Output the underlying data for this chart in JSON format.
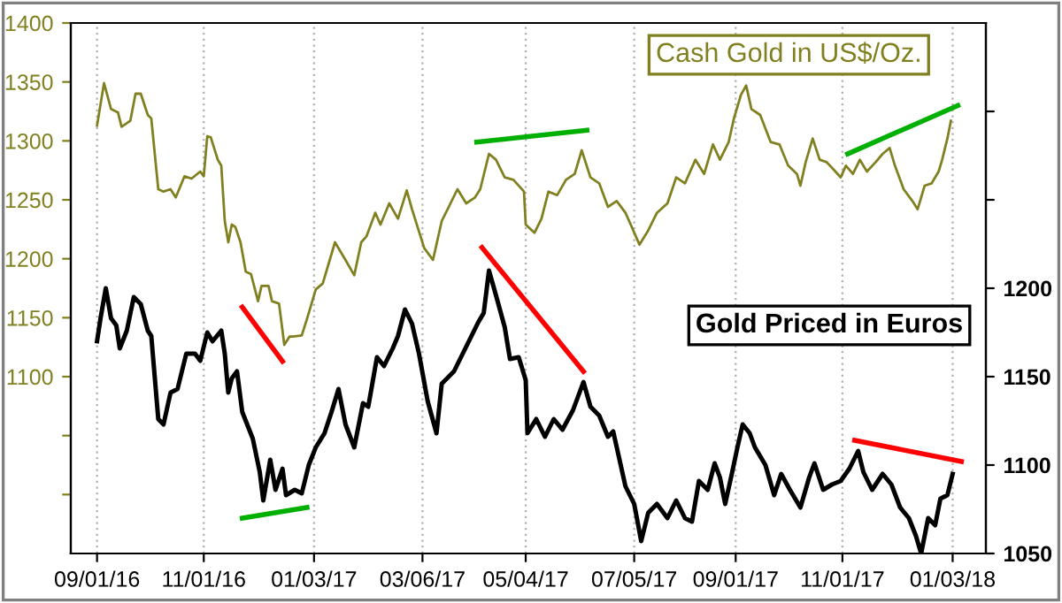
{
  "chart_data": {
    "type": "line",
    "legend": false,
    "grid": "x",
    "xlim": [
      "2016-08-17",
      "2018-01-22"
    ],
    "xticks": [
      {
        "value": "2016-09-01",
        "label": "09/01/16"
      },
      {
        "value": "2016-11-01",
        "label": "11/01/16"
      },
      {
        "value": "2017-01-03",
        "label": "01/03/17"
      },
      {
        "value": "2017-03-06",
        "label": "03/06/17"
      },
      {
        "value": "2017-05-04",
        "label": "05/04/17"
      },
      {
        "value": "2017-07-05",
        "label": "07/05/17"
      },
      {
        "value": "2017-09-01",
        "label": "09/01/17"
      },
      {
        "value": "2017-11-01",
        "label": "11/01/17"
      },
      {
        "value": "2018-01-03",
        "label": "01/03/18"
      }
    ],
    "ylim": [
      950,
      1400
    ],
    "yticks": [
      {
        "value": 1000,
        "label": null
      },
      {
        "value": 1050,
        "label": null
      },
      1100,
      1150,
      1200,
      1250,
      1300,
      1350,
      1400
    ],
    "y2lim": [
      1050,
      1350
    ],
    "y2ticks": [
      1050,
      1100,
      1150,
      1200,
      {
        "value": 1250,
        "label": null
      },
      {
        "value": 1300,
        "label": null
      }
    ],
    "series": [
      {
        "name": "Cash Gold in US$/Oz.",
        "color": "#808020",
        "axis": "y",
        "x": [
          "2016-09-01",
          "2016-09-05",
          "2016-09-09",
          "2016-09-13",
          "2016-09-15",
          "2016-09-20",
          "2016-09-23",
          "2016-09-26",
          "2016-09-30",
          "2016-10-02",
          "2016-10-06",
          "2016-10-09",
          "2016-10-13",
          "2016-10-16",
          "2016-10-21",
          "2016-10-25",
          "2016-10-30",
          "2016-11-01",
          "2016-11-03",
          "2016-11-05",
          "2016-11-09",
          "2016-11-11",
          "2016-11-13",
          "2016-11-15",
          "2016-11-17",
          "2016-11-19",
          "2016-11-22",
          "2016-11-25",
          "2016-11-28",
          "2016-12-02",
          "2016-12-04",
          "2016-12-08",
          "2016-12-10",
          "2016-12-14",
          "2016-12-16",
          "2016-12-17",
          "2016-12-20",
          "2016-12-22",
          "2016-12-27",
          "2016-12-30",
          "2017-01-01",
          "2017-01-04",
          "2017-01-08",
          "2017-01-12",
          "2017-01-15",
          "2017-01-17",
          "2017-01-21",
          "2017-01-26",
          "2017-01-30",
          "2017-02-02",
          "2017-02-07",
          "2017-02-10",
          "2017-02-15",
          "2017-02-20",
          "2017-02-25",
          "2017-02-28",
          "2017-03-07",
          "2017-03-12",
          "2017-03-17",
          "2017-03-22",
          "2017-03-26",
          "2017-03-31",
          "2017-04-05",
          "2017-04-08",
          "2017-04-13",
          "2017-04-17",
          "2017-04-22",
          "2017-04-27",
          "2017-05-03",
          "2017-05-04",
          "2017-05-09",
          "2017-05-13",
          "2017-05-17",
          "2017-05-22",
          "2017-05-27",
          "2017-06-01",
          "2017-06-05",
          "2017-06-10",
          "2017-06-15",
          "2017-06-20",
          "2017-06-25",
          "2017-06-30",
          "2017-07-03",
          "2017-07-08",
          "2017-07-13",
          "2017-07-18",
          "2017-07-24",
          "2017-07-29",
          "2017-08-03",
          "2017-08-09",
          "2017-08-14",
          "2017-08-19",
          "2017-08-23",
          "2017-08-28",
          "2017-08-31",
          "2017-09-04",
          "2017-09-07",
          "2017-09-10",
          "2017-09-15",
          "2017-09-21",
          "2017-09-26",
          "2017-10-01",
          "2017-10-06",
          "2017-10-08",
          "2017-10-11",
          "2017-10-15",
          "2017-10-19",
          "2017-10-23",
          "2017-10-28",
          "2017-10-31",
          "2017-11-03",
          "2017-11-07",
          "2017-11-11",
          "2017-11-15",
          "2017-11-20",
          "2017-11-24",
          "2017-11-28",
          "2017-12-01",
          "2017-12-06",
          "2017-12-11",
          "2017-12-14",
          "2017-12-18",
          "2017-12-22",
          "2017-12-26",
          "2017-12-28",
          "2017-12-31",
          "2018-01-02"
        ],
        "values": [
          1313,
          1349,
          1327,
          1324,
          1312,
          1317,
          1340,
          1340,
          1322,
          1319,
          1259,
          1257,
          1259,
          1252,
          1270,
          1268,
          1274,
          1270,
          1304,
          1303,
          1284,
          1279,
          1232,
          1214,
          1229,
          1227,
          1214,
          1189,
          1187,
          1164,
          1177,
          1177,
          1164,
          1162,
          1139,
          1127,
          1134,
          1134,
          1135,
          1149,
          1159,
          1174,
          1179,
          1199,
          1214,
          1209,
          1199,
          1186,
          1214,
          1219,
          1239,
          1229,
          1247,
          1234,
          1258,
          1242,
          1209,
          1199,
          1232,
          1247,
          1259,
          1247,
          1252,
          1259,
          1289,
          1284,
          1269,
          1267,
          1257,
          1229,
          1222,
          1234,
          1257,
          1254,
          1267,
          1272,
          1292,
          1269,
          1264,
          1244,
          1249,
          1239,
          1229,
          1212,
          1224,
          1239,
          1247,
          1269,
          1264,
          1284,
          1272,
          1297,
          1284,
          1299,
          1319,
          1339,
          1347,
          1327,
          1322,
          1299,
          1297,
          1279,
          1272,
          1262,
          1282,
          1302,
          1284,
          1282,
          1274,
          1269,
          1279,
          1272,
          1284,
          1274,
          1282,
          1289,
          1294,
          1279,
          1259,
          1249,
          1242,
          1262,
          1264,
          1274,
          1284,
          1302,
          1317
        ]
      },
      {
        "name": "Gold Priced in Euros",
        "color": "#000000",
        "axis": "y2",
        "x": [
          "2016-09-01",
          "2016-09-03",
          "2016-09-06",
          "2016-09-09",
          "2016-09-12",
          "2016-09-14",
          "2016-09-18",
          "2016-09-22",
          "2016-09-26",
          "2016-09-30",
          "2016-10-02",
          "2016-10-06",
          "2016-10-09",
          "2016-10-13",
          "2016-10-17",
          "2016-10-22",
          "2016-10-27",
          "2016-10-30",
          "2016-11-03",
          "2016-11-06",
          "2016-11-11",
          "2016-11-13",
          "2016-11-15",
          "2016-11-17",
          "2016-11-20",
          "2016-11-23",
          "2016-11-29",
          "2016-12-03",
          "2016-12-05",
          "2016-12-09",
          "2016-12-12",
          "2016-12-16",
          "2016-12-18",
          "2016-12-23",
          "2016-12-27",
          "2016-12-31",
          "2017-01-04",
          "2017-01-09",
          "2017-01-13",
          "2017-01-17",
          "2017-01-21",
          "2017-01-26",
          "2017-01-31",
          "2017-02-03",
          "2017-02-08",
          "2017-02-12",
          "2017-02-17",
          "2017-02-20",
          "2017-02-24",
          "2017-02-28",
          "2017-03-04",
          "2017-03-09",
          "2017-03-14",
          "2017-03-17",
          "2017-03-24",
          "2017-03-29",
          "2017-04-03",
          "2017-04-07",
          "2017-04-10",
          "2017-04-13",
          "2017-04-17",
          "2017-04-22",
          "2017-04-25",
          "2017-04-30",
          "2017-05-04",
          "2017-05-05",
          "2017-05-10",
          "2017-05-15",
          "2017-05-20",
          "2017-05-25",
          "2017-05-31",
          "2017-06-06",
          "2017-06-10",
          "2017-06-15",
          "2017-06-20",
          "2017-06-23",
          "2017-06-30",
          "2017-07-05",
          "2017-07-09",
          "2017-07-13",
          "2017-07-18",
          "2017-07-24",
          "2017-07-29",
          "2017-08-03",
          "2017-08-07",
          "2017-08-11",
          "2017-08-16",
          "2017-08-20",
          "2017-08-23",
          "2017-08-26",
          "2017-08-30",
          "2017-09-02",
          "2017-09-05",
          "2017-09-09",
          "2017-09-12",
          "2017-09-18",
          "2017-09-23",
          "2017-09-27",
          "2017-10-02",
          "2017-10-08",
          "2017-10-13",
          "2017-10-16",
          "2017-10-21",
          "2017-10-26",
          "2017-10-31",
          "2017-11-05",
          "2017-11-10",
          "2017-11-13",
          "2017-11-18",
          "2017-11-24",
          "2017-11-29",
          "2017-12-04",
          "2017-12-09",
          "2017-12-13",
          "2017-12-16",
          "2017-12-20",
          "2017-12-24",
          "2017-12-27",
          "2017-12-31",
          "2018-01-03"
        ],
        "values": [
          1170,
          1183,
          1200,
          1183,
          1179,
          1166,
          1176,
          1195,
          1191,
          1176,
          1173,
          1126,
          1123,
          1141,
          1143,
          1163,
          1163,
          1159,
          1175,
          1170,
          1176,
          1163,
          1141,
          1149,
          1153,
          1130,
          1115,
          1096,
          1080,
          1103,
          1086,
          1098,
          1083,
          1086,
          1084,
          1100,
          1110,
          1118,
          1130,
          1143,
          1123,
          1110,
          1135,
          1133,
          1161,
          1156,
          1166,
          1173,
          1188,
          1180,
          1163,
          1136,
          1118,
          1146,
          1153,
          1163,
          1173,
          1181,
          1186,
          1210,
          1196,
          1178,
          1160,
          1161,
          1148,
          1118,
          1126,
          1116,
          1126,
          1120,
          1131,
          1147,
          1133,
          1128,
          1116,
          1119,
          1088,
          1078,
          1057,
          1073,
          1078,
          1070,
          1080,
          1070,
          1068,
          1091,
          1086,
          1101,
          1093,
          1078,
          1096,
          1110,
          1123,
          1118,
          1110,
          1100,
          1083,
          1095,
          1086,
          1076,
          1093,
          1101,
          1086,
          1089,
          1091,
          1098,
          1108,
          1096,
          1086,
          1095,
          1089,
          1076,
          1070,
          1060,
          1050,
          1070,
          1066,
          1081,
          1083,
          1095
        ]
      },
      {
        "color": "#ff0000",
        "axis": "y",
        "x": [
          "2016-11-23",
          "2016-12-16"
        ],
        "values": [
          1159,
          1113
        ]
      },
      {
        "color": "#00b000",
        "axis": "y2",
        "x": [
          "2016-11-23",
          "2016-12-30"
        ],
        "values": [
          1070,
          1076
        ]
      },
      {
        "color": "#00b000",
        "axis": "y",
        "x": [
          "2017-04-06",
          "2017-06-08"
        ],
        "values": [
          1299,
          1309
        ]
      },
      {
        "color": "#ff0000",
        "axis": "y2",
        "x": [
          "2017-04-09",
          "2017-06-06"
        ],
        "values": [
          1223,
          1153
        ]
      },
      {
        "color": "#00b000",
        "axis": "y",
        "x": [
          "2017-11-04",
          "2018-01-06"
        ],
        "values": [
          1289,
          1330
        ]
      },
      {
        "color": "#ff0000",
        "axis": "y2",
        "x": [
          "2017-11-08",
          "2018-01-08"
        ],
        "values": [
          1114,
          1102
        ]
      }
    ]
  }
}
